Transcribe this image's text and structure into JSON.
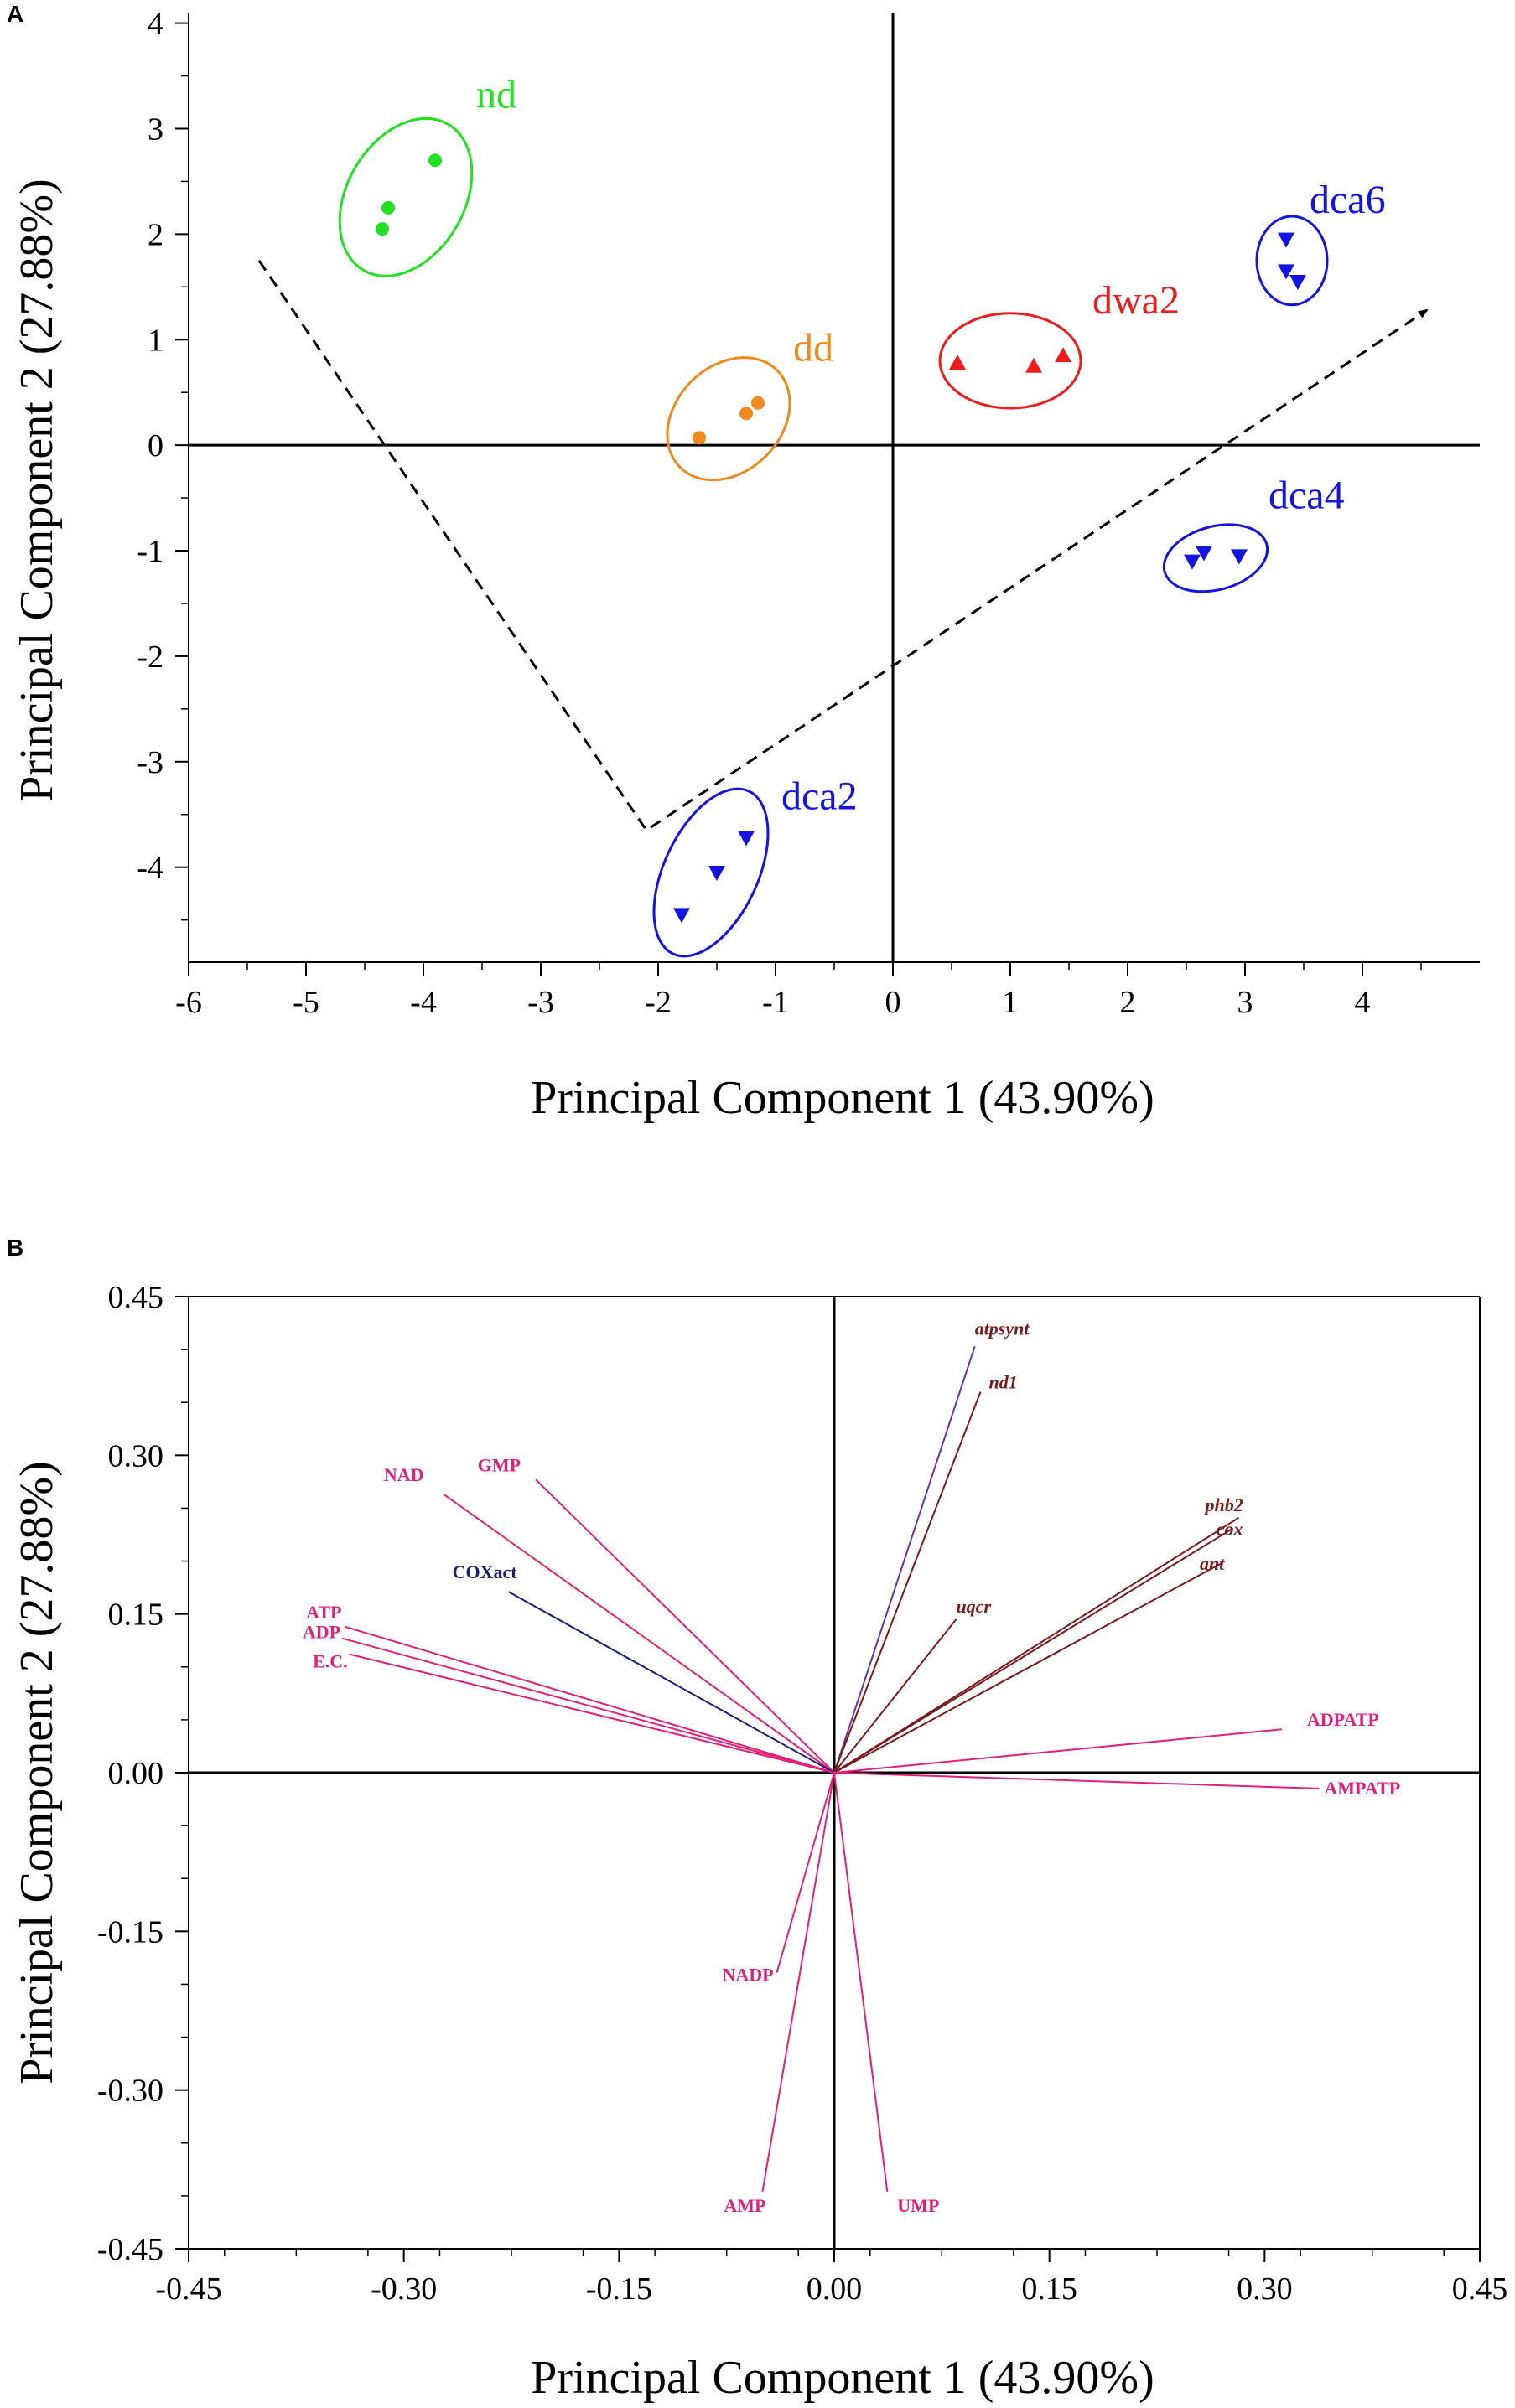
{
  "chart_data": [
    {
      "panel": "A",
      "type": "scatter",
      "xlabel": "Principal Component 1 (43.90%)",
      "ylabel": "Principal Component 2 (27.88%)",
      "xlim": [
        -6,
        5
      ],
      "ylim": [
        -4.9,
        4.1
      ],
      "xticks": [
        "-6",
        "-5",
        "-4",
        "-3",
        "-2",
        "-1",
        "0",
        "1",
        "2",
        "3",
        "4"
      ],
      "yticks": [
        "4",
        "3",
        "2",
        "1",
        "0",
        "-1",
        "-2",
        "-3",
        "-4"
      ],
      "groups": [
        {
          "name": "nd",
          "color": "#22e022",
          "marker": "circle",
          "points": [
            [
              -3.9,
              2.7
            ],
            [
              -4.3,
              2.25
            ],
            [
              -4.35,
              2.05
            ]
          ],
          "ellipse": {
            "cx": -4.15,
            "cy": 2.35,
            "rx": 0.5,
            "ry": 0.8,
            "angle": 30
          },
          "label_pos": [
            -3.55,
            3.2
          ]
        },
        {
          "name": "dd",
          "color": "#f08a1c",
          "marker": "circle",
          "points": [
            [
              -1.65,
              0.07
            ],
            [
              -1.25,
              0.3
            ],
            [
              -1.15,
              0.4
            ]
          ],
          "ellipse": {
            "cx": -1.4,
            "cy": 0.25,
            "rx": 0.45,
            "ry": 0.65,
            "angle": 45
          },
          "label_pos": [
            -0.85,
            0.8
          ]
        },
        {
          "name": "dwa2",
          "color": "#ee1c1c",
          "marker": "triangle-up",
          "points": [
            [
              0.55,
              0.78
            ],
            [
              1.2,
              0.75
            ],
            [
              1.45,
              0.85
            ]
          ],
          "ellipse": {
            "cx": 1.0,
            "cy": 0.8,
            "rx": 0.6,
            "ry": 0.45,
            "angle": 0
          },
          "label_pos": [
            1.7,
            1.25
          ]
        },
        {
          "name": "dca6",
          "color": "#1414e0",
          "marker": "triangle-down",
          "points": [
            [
              3.35,
              1.95
            ],
            [
              3.35,
              1.65
            ],
            [
              3.45,
              1.55
            ]
          ],
          "ellipse": {
            "cx": 3.4,
            "cy": 1.75,
            "rx": 0.3,
            "ry": 0.42,
            "angle": 0
          },
          "label_pos": [
            3.55,
            2.2
          ]
        },
        {
          "name": "dca4",
          "color": "#1414e0",
          "marker": "triangle-down",
          "points": [
            [
              2.55,
              -1.1
            ],
            [
              2.65,
              -1.02
            ],
            [
              2.95,
              -1.05
            ]
          ],
          "ellipse": {
            "cx": 2.75,
            "cy": -1.07,
            "rx": 0.45,
            "ry": 0.3,
            "angle": -15
          },
          "label_pos": [
            3.2,
            -0.6
          ]
        },
        {
          "name": "dca2",
          "color": "#1414e0",
          "marker": "triangle-down",
          "points": [
            [
              -1.8,
              -4.45
            ],
            [
              -1.5,
              -4.05
            ],
            [
              -1.25,
              -3.72
            ]
          ],
          "ellipse": {
            "cx": -1.55,
            "cy": -4.05,
            "rx": 0.4,
            "ry": 0.85,
            "angle": 25
          },
          "label_pos": [
            -0.95,
            -3.45
          ]
        }
      ],
      "annotations": {
        "dashed_path": [
          [
            -5.4,
            1.75
          ],
          [
            -2.1,
            -3.65
          ],
          [
            4.55,
            1.28
          ]
        ],
        "arrow_end": true
      }
    },
    {
      "panel": "B",
      "type": "loading-vectors",
      "xlabel": "Principal Component 1 (43.90%)",
      "ylabel": "Principal Component 2 (27.88%)",
      "xlim": [
        -0.45,
        0.45
      ],
      "ylim": [
        -0.45,
        0.45
      ],
      "xticks": [
        "-0.45",
        "-0.30",
        "-0.15",
        "0.00",
        "0.15",
        "0.30",
        "0.45"
      ],
      "yticks": [
        "0.45",
        "0.30",
        "0.15",
        "0.00",
        "-0.15",
        "-0.30",
        "-0.45"
      ],
      "vectors": [
        {
          "name": "atpsynt",
          "x": 0.098,
          "y": 0.403,
          "color": "#6633aa",
          "label_color": "#7a1a1a",
          "italic": true
        },
        {
          "name": "nd1",
          "x": 0.102,
          "y": 0.36,
          "color": "#7a1a1a",
          "label_color": "#7a1a1a",
          "italic": true
        },
        {
          "name": "phb2",
          "x": 0.282,
          "y": 0.241,
          "color": "#7a1a1a",
          "label_color": "#7a1a1a",
          "italic": true
        },
        {
          "name": "cox",
          "x": 0.278,
          "y": 0.231,
          "color": "#7a1a1a",
          "label_color": "#7a1a1a",
          "italic": true
        },
        {
          "name": "ant",
          "x": 0.27,
          "y": 0.198,
          "color": "#7a1a1a",
          "label_color": "#7a1a1a",
          "italic": true
        },
        {
          "name": "uqcr",
          "x": 0.085,
          "y": 0.145,
          "color": "#7a1a1a",
          "label_color": "#7a1a1a",
          "italic": true
        },
        {
          "name": "ADPATP",
          "x": 0.312,
          "y": 0.041,
          "color": "#e0207a",
          "label_color": "#e0207a",
          "italic": false
        },
        {
          "name": "AMPATP",
          "x": 0.338,
          "y": -0.015,
          "color": "#e0207a",
          "label_color": "#e0207a",
          "italic": false
        },
        {
          "name": "GMP",
          "x": -0.208,
          "y": 0.277,
          "color": "#e0207a",
          "label_color": "#e0207a",
          "italic": false
        },
        {
          "name": "NAD",
          "x": -0.272,
          "y": 0.263,
          "color": "#e0207a",
          "label_color": "#e0207a",
          "italic": false
        },
        {
          "name": "COXact",
          "x": -0.227,
          "y": 0.171,
          "color": "#1c1c7a",
          "label_color": "#1c1c7a",
          "italic": false
        },
        {
          "name": "ATP",
          "x": -0.341,
          "y": 0.138,
          "color": "#e0207a",
          "label_color": "#e0207a",
          "italic": false
        },
        {
          "name": "ADP",
          "x": -0.343,
          "y": 0.127,
          "color": "#e0207a",
          "label_color": "#e0207a",
          "italic": false
        },
        {
          "name": "E.C.",
          "x": -0.338,
          "y": 0.112,
          "color": "#e0207a",
          "label_color": "#e0207a",
          "italic": false
        },
        {
          "name": "NADP",
          "x": -0.04,
          "y": -0.189,
          "color": "#e0207a",
          "label_color": "#e0207a",
          "italic": false
        },
        {
          "name": "AMP",
          "x": -0.05,
          "y": -0.396,
          "color": "#e0207a",
          "label_color": "#e0207a",
          "italic": false
        },
        {
          "name": "UMP",
          "x": 0.037,
          "y": -0.396,
          "color": "#e0207a",
          "label_color": "#e0207a",
          "italic": false
        }
      ]
    }
  ]
}
